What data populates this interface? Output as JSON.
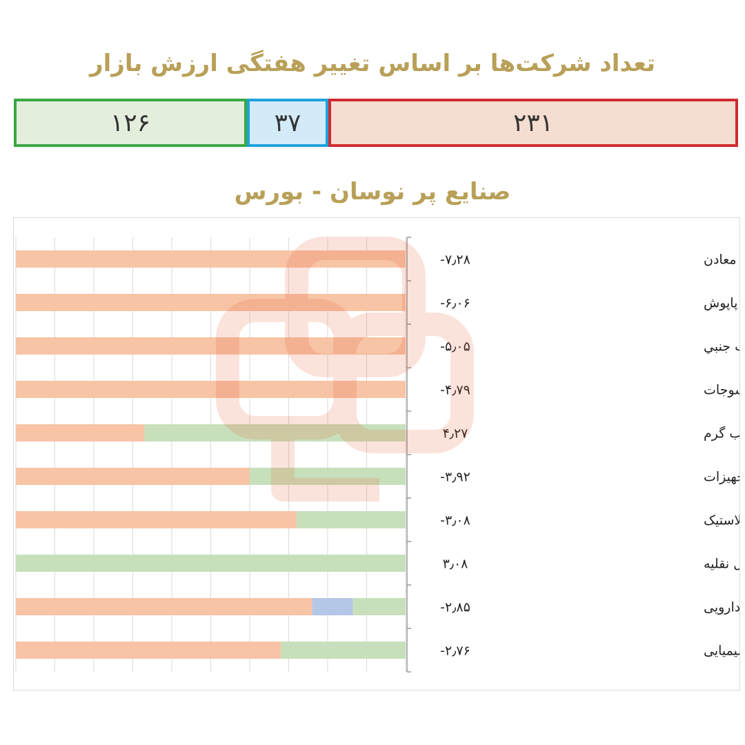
{
  "header": {
    "title": "تعداد شرکت‌ها بر اساس تغییر هفتگی ارزش بازار"
  },
  "counts": {
    "green": "۱۲۶",
    "blue": "۳۷",
    "red": "۲۳۱"
  },
  "colors": {
    "title": "#b8a058",
    "green_border": "#3aa843",
    "blue_border": "#1ea2dc",
    "red_border": "#d02b30",
    "bar_orange": "#f7c4a6",
    "bar_green": "#c7e0bb",
    "bar_blue": "#b4c7e7"
  },
  "chart_data": {
    "type": "bar",
    "orientation": "horizontal",
    "stacked": true,
    "title": "صنایع پر نوسان - بورس",
    "xlim": [
      0,
      1
    ],
    "categories": [
      "استخراج سایر معادن",
      "دباغی، پرداخت چرم و ساخت انواع پاپوش",
      "استخراج نفت، گاز و خدمات جنبي",
      "منسوجات",
      "عرضه برق، گاز، بخار و آب گرم",
      "ماشین آلات و تجهیزات",
      "لاستیک و پلاستیک",
      "خرده فروشی به استثنای وسایل نقلیه",
      "مواد و محصولات دارویی",
      "محصولات شیمیایی"
    ],
    "value_labels": [
      "-۷٫۲۸",
      "-۶٫۰۶",
      "-۵٫۰۵",
      "-۴٫۷۹",
      "۴٫۲۷",
      "-۳٫۹۲",
      "-۳٫۰۸",
      "۳٫۰۸",
      "-۲٫۸۵",
      "-۲٫۷۶"
    ],
    "series": [
      {
        "color": "#f7c4a6",
        "values": [
          1.0,
          1.0,
          1.0,
          1.0,
          0.33,
          0.6,
          0.72,
          0.0,
          0.76,
          0.68
        ]
      },
      {
        "color": "#b4c7e7",
        "values": [
          0.0,
          0.0,
          0.0,
          0.0,
          0.0,
          0.0,
          0.0,
          0.0,
          0.105,
          0.0
        ]
      },
      {
        "color": "#c7e0bb",
        "values": [
          0.0,
          0.0,
          0.0,
          0.0,
          0.67,
          0.4,
          0.28,
          1.0,
          0.135,
          0.32
        ]
      }
    ],
    "grid": true
  }
}
